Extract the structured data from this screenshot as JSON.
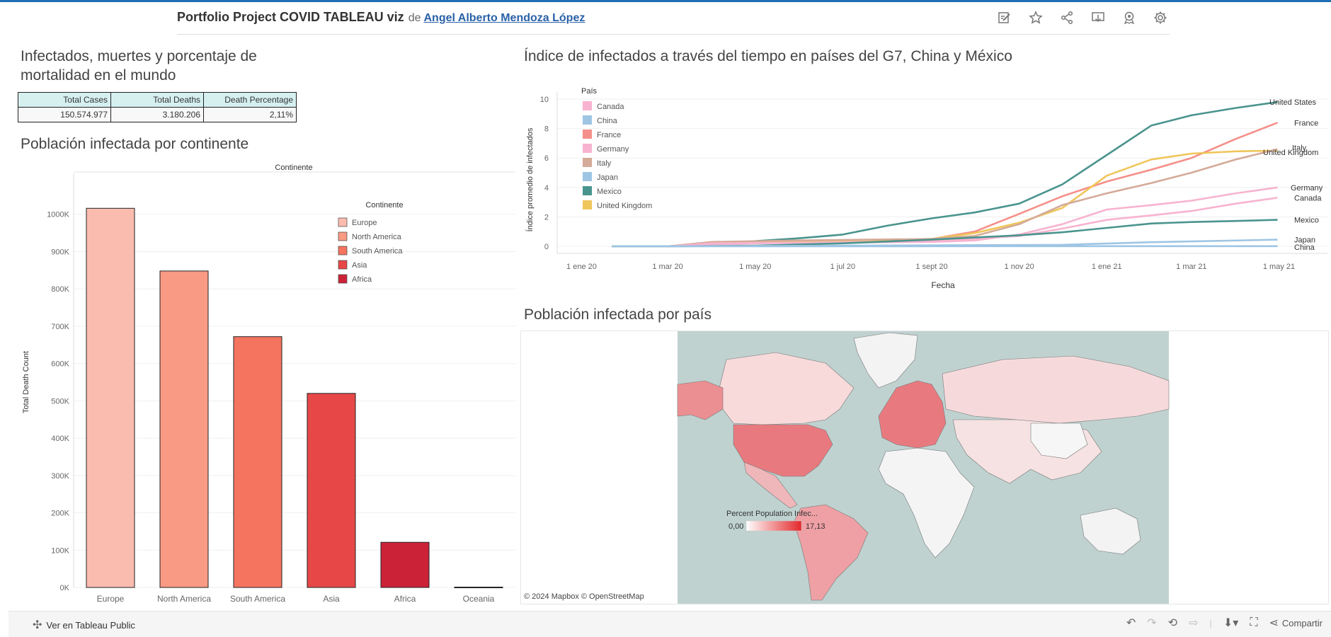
{
  "header": {
    "title": "Portfolio Project COVID TABLEAU viz",
    "de": "de",
    "author": "Angel Alberto Mendoza López",
    "icons": [
      "edit-icon",
      "star-icon",
      "share-icon",
      "download-icon",
      "subscribe-icon",
      "settings-icon"
    ]
  },
  "kpi_section": {
    "title_line1": "Infectados, muertes y porcentaje de",
    "title_line2": "mortalidad en el mundo",
    "headers": [
      "Total Cases",
      "Total Deaths",
      "Death Percentage"
    ],
    "values": [
      "150.574.977",
      "3.180.206",
      "2,11%"
    ]
  },
  "continent_section": {
    "title": "Población infectada por continente"
  },
  "line_section": {
    "title": "Índice de infectados a través del tiempo en países del G7, China y México"
  },
  "map_section": {
    "title": "Población infectada por país",
    "legend_title": "Percent Population Infec...",
    "legend_min": "0,00",
    "legend_max": "17,13",
    "credit": "© 2024 Mapbox  © OpenStreetMap"
  },
  "footer": {
    "view_label": "Ver en Tableau Public",
    "share_label": "Compartir"
  },
  "chart_data": [
    {
      "type": "bar",
      "title": "",
      "column_header": "Continente",
      "ylabel": "Total Death Count",
      "xlabel": "",
      "categories": [
        "Europe",
        "North America",
        "South America",
        "Asia",
        "Africa",
        "Oceania"
      ],
      "values": [
        1016000,
        848000,
        672000,
        520000,
        121000,
        1000
      ],
      "colors": [
        "#fbbcb0",
        "#f99a84",
        "#f47460",
        "#e84747",
        "#cc2238",
        "#8c1030"
      ],
      "ylim": [
        0,
        1100000
      ],
      "yticks": [
        0,
        100000,
        200000,
        300000,
        400000,
        500000,
        600000,
        700000,
        800000,
        900000,
        1000000
      ],
      "ytick_labels": [
        "0K",
        "100K",
        "200K",
        "300K",
        "400K",
        "500K",
        "600K",
        "700K",
        "800K",
        "900K",
        "1000K"
      ],
      "legend_title": "Continente",
      "legend": [
        "Europe",
        "North America",
        "South America",
        "Asia",
        "Africa"
      ],
      "legend_placement": "top-right",
      "grid": true
    },
    {
      "type": "line",
      "title": "",
      "xlabel": "Fecha",
      "ylabel": "Índice promedio de infectados",
      "x_ticks": [
        "1 ene 20",
        "1 mar 20",
        "1 may 20",
        "1 jul 20",
        "1 sept 20",
        "1 nov 20",
        "1 ene 21",
        "1 mar 21",
        "1 may 21"
      ],
      "x_tick_values": [
        "2020-01-01",
        "2020-03-01",
        "2020-05-01",
        "2020-07-01",
        "2020-09-01",
        "2020-11-01",
        "2021-01-01",
        "2021-03-01",
        "2021-05-01"
      ],
      "ylim": [
        0,
        10
      ],
      "yticks": [
        0,
        2,
        4,
        6,
        8,
        10
      ],
      "legend_title": "País",
      "legend_placement": "top-left",
      "grid": true,
      "series": [
        {
          "name": "United States",
          "color": "#4a948e",
          "points": [
            [
              "2020-01-22",
              0
            ],
            [
              "2020-03-01",
              0
            ],
            [
              "2020-04-01",
              0.2
            ],
            [
              "2020-05-01",
              0.35
            ],
            [
              "2020-06-01",
              0.55
            ],
            [
              "2020-07-01",
              0.8
            ],
            [
              "2020-08-01",
              1.4
            ],
            [
              "2020-09-01",
              1.9
            ],
            [
              "2020-10-01",
              2.3
            ],
            [
              "2020-11-01",
              2.9
            ],
            [
              "2020-12-01",
              4.2
            ],
            [
              "2021-01-01",
              6.2
            ],
            [
              "2021-02-01",
              8.2
            ],
            [
              "2021-03-01",
              8.9
            ],
            [
              "2021-04-01",
              9.4
            ],
            [
              "2021-04-30",
              9.8
            ]
          ]
        },
        {
          "name": "France",
          "color": "#f58f89",
          "points": [
            [
              "2020-03-01",
              0
            ],
            [
              "2020-04-01",
              0.2
            ],
            [
              "2020-05-01",
              0.25
            ],
            [
              "2020-07-01",
              0.3
            ],
            [
              "2020-09-01",
              0.5
            ],
            [
              "2020-10-01",
              1.0
            ],
            [
              "2020-11-01",
              2.2
            ],
            [
              "2020-12-01",
              3.4
            ],
            [
              "2021-01-01",
              4.4
            ],
            [
              "2021-02-01",
              5.2
            ],
            [
              "2021-03-01",
              6.0
            ],
            [
              "2021-04-01",
              7.3
            ],
            [
              "2021-04-30",
              8.4
            ]
          ]
        },
        {
          "name": "United Kingdom",
          "color": "#efc65a",
          "points": [
            [
              "2020-03-01",
              0
            ],
            [
              "2020-04-01",
              0.2
            ],
            [
              "2020-06-01",
              0.3
            ],
            [
              "2020-09-01",
              0.5
            ],
            [
              "2020-10-01",
              0.9
            ],
            [
              "2020-11-01",
              1.6
            ],
            [
              "2020-12-01",
              2.6
            ],
            [
              "2021-01-01",
              4.8
            ],
            [
              "2021-02-01",
              5.9
            ],
            [
              "2021-03-01",
              6.3
            ],
            [
              "2021-04-01",
              6.45
            ],
            [
              "2021-04-30",
              6.5
            ]
          ]
        },
        {
          "name": "Italy",
          "color": "#d4aa98",
          "points": [
            [
              "2020-03-01",
              0
            ],
            [
              "2020-04-01",
              0.3
            ],
            [
              "2020-06-01",
              0.4
            ],
            [
              "2020-09-01",
              0.5
            ],
            [
              "2020-10-01",
              0.7
            ],
            [
              "2020-11-01",
              1.5
            ],
            [
              "2020-12-01",
              2.8
            ],
            [
              "2021-01-01",
              3.6
            ],
            [
              "2021-02-01",
              4.3
            ],
            [
              "2021-03-01",
              5.0
            ],
            [
              "2021-04-01",
              5.9
            ],
            [
              "2021-04-30",
              6.6
            ]
          ]
        },
        {
          "name": "Germany",
          "color": "#f7b3cf",
          "points": [
            [
              "2020-03-01",
              0
            ],
            [
              "2020-04-01",
              0.2
            ],
            [
              "2020-09-01",
              0.3
            ],
            [
              "2020-10-01",
              0.4
            ],
            [
              "2020-11-01",
              0.8
            ],
            [
              "2020-12-01",
              1.5
            ],
            [
              "2021-01-01",
              2.5
            ],
            [
              "2021-02-01",
              2.8
            ],
            [
              "2021-03-01",
              3.1
            ],
            [
              "2021-04-01",
              3.6
            ],
            [
              "2021-04-30",
              4.0
            ]
          ]
        },
        {
          "name": "Canada",
          "color": "#f7b3cf",
          "points": [
            [
              "2020-03-01",
              0
            ],
            [
              "2020-05-01",
              0.2
            ],
            [
              "2020-09-01",
              0.35
            ],
            [
              "2020-11-01",
              0.7
            ],
            [
              "2020-12-01",
              1.2
            ],
            [
              "2021-01-01",
              1.8
            ],
            [
              "2021-02-01",
              2.1
            ],
            [
              "2021-03-01",
              2.4
            ],
            [
              "2021-04-01",
              2.9
            ],
            [
              "2021-04-30",
              3.3
            ]
          ]
        },
        {
          "name": "Mexico",
          "color": "#4a948e",
          "points": [
            [
              "2020-03-01",
              0
            ],
            [
              "2020-05-01",
              0.05
            ],
            [
              "2020-07-01",
              0.2
            ],
            [
              "2020-09-01",
              0.45
            ],
            [
              "2020-11-01",
              0.75
            ],
            [
              "2020-12-01",
              0.95
            ],
            [
              "2021-01-01",
              1.25
            ],
            [
              "2021-02-01",
              1.55
            ],
            [
              "2021-03-01",
              1.65
            ],
            [
              "2021-04-01",
              1.72
            ],
            [
              "2021-04-30",
              1.8
            ]
          ]
        },
        {
          "name": "Japan",
          "color": "#9ec5e4",
          "points": [
            [
              "2020-03-01",
              0
            ],
            [
              "2020-12-01",
              0.1
            ],
            [
              "2021-02-01",
              0.28
            ],
            [
              "2021-04-30",
              0.45
            ]
          ]
        },
        {
          "name": "China",
          "color": "#9ec5e4",
          "points": [
            [
              "2020-01-22",
              0
            ],
            [
              "2021-04-30",
              0.01
            ]
          ]
        }
      ],
      "legend": [
        {
          "name": "Canada",
          "color": "#f7b3cf"
        },
        {
          "name": "China",
          "color": "#9ec5e4"
        },
        {
          "name": "France",
          "color": "#f58f89"
        },
        {
          "name": "Germany",
          "color": "#f7b3cf"
        },
        {
          "name": "Italy",
          "color": "#d4aa98"
        },
        {
          "name": "Japan",
          "color": "#9ec5e4"
        },
        {
          "name": "Mexico",
          "color": "#4a948e"
        },
        {
          "name": "United Kingdom",
          "color": "#efc65a"
        }
      ],
      "end_labels": [
        "United States",
        "France",
        "Italy",
        "United Kingdom",
        "Germany",
        "Canada",
        "Mexico",
        "Japan",
        "China"
      ]
    }
  ]
}
